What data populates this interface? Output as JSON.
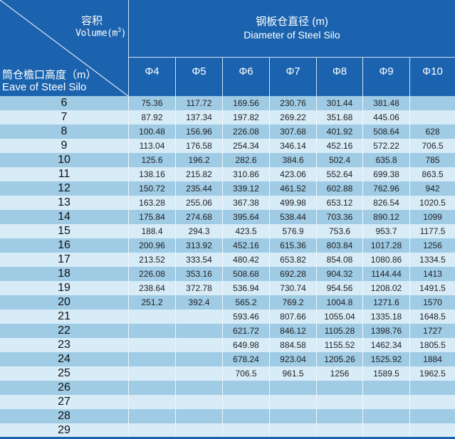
{
  "header": {
    "volume_cn": "容积",
    "volume_en": "Volume(m",
    "volume_sup": "3",
    "volume_close": ")",
    "eave_cn": "筒仓檐口高度（m）",
    "eave_en": "Eave of Steel Silo",
    "diameter_cn": "钢板仓直径 (m)",
    "diameter_en": "Diameter of Steel Silo"
  },
  "columns": [
    "Φ4",
    "Φ5",
    "Φ6",
    "Φ7",
    "Φ8",
    "Φ9",
    "Φ10"
  ],
  "rows": [
    {
      "h": "6",
      "v": [
        "75.36",
        "117.72",
        "169.56",
        "230.76",
        "301.44",
        "381.48",
        ""
      ]
    },
    {
      "h": "7",
      "v": [
        "87.92",
        "137.34",
        "197.82",
        "269.22",
        "351.68",
        "445.06",
        ""
      ]
    },
    {
      "h": "8",
      "v": [
        "100.48",
        "156.96",
        "226.08",
        "307.68",
        "401.92",
        "508.64",
        "628"
      ]
    },
    {
      "h": "9",
      "v": [
        "113.04",
        "176.58",
        "254.34",
        "346.14",
        "452.16",
        "572.22",
        "706.5"
      ]
    },
    {
      "h": "10",
      "v": [
        "125.6",
        "196.2",
        "282.6",
        "384.6",
        "502.4",
        "635.8",
        "785"
      ]
    },
    {
      "h": "11",
      "v": [
        "138.16",
        "215.82",
        "310.86",
        "423.06",
        "552.64",
        "699.38",
        "863.5"
      ]
    },
    {
      "h": "12",
      "v": [
        "150.72",
        "235.44",
        "339.12",
        "461.52",
        "602.88",
        "762.96",
        "942"
      ]
    },
    {
      "h": "13",
      "v": [
        "163.28",
        "255.06",
        "367.38",
        "499.98",
        "653.12",
        "826.54",
        "1020.5"
      ]
    },
    {
      "h": "14",
      "v": [
        "175.84",
        "274.68",
        "395.64",
        "538.44",
        "703.36",
        "890.12",
        "1099"
      ]
    },
    {
      "h": "15",
      "v": [
        "188.4",
        "294.3",
        "423.5",
        "576.9",
        "753.6",
        "953.7",
        "1177.5"
      ]
    },
    {
      "h": "16",
      "v": [
        "200.96",
        "313.92",
        "452.16",
        "615.36",
        "803.84",
        "1017.28",
        "1256"
      ]
    },
    {
      "h": "17",
      "v": [
        "213.52",
        "333.54",
        "480.42",
        "653.82",
        "854.08",
        "1080.86",
        "1334.5"
      ]
    },
    {
      "h": "18",
      "v": [
        "226.08",
        "353.16",
        "508.68",
        "692.28",
        "904.32",
        "1144.44",
        "1413"
      ]
    },
    {
      "h": "19",
      "v": [
        "238.64",
        "372.78",
        "536.94",
        "730.74",
        "954.56",
        "1208.02",
        "1491.5"
      ]
    },
    {
      "h": "20",
      "v": [
        "251.2",
        "392.4",
        "565.2",
        "769.2",
        "1004.8",
        "1271.6",
        "1570"
      ]
    },
    {
      "h": "21",
      "v": [
        "",
        "",
        "593.46",
        "807.66",
        "1055.04",
        "1335.18",
        "1648.5"
      ]
    },
    {
      "h": "22",
      "v": [
        "",
        "",
        "621.72",
        "846.12",
        "1105.28",
        "1398.76",
        "1727"
      ]
    },
    {
      "h": "23",
      "v": [
        "",
        "",
        "649.98",
        "884.58",
        "1155.52",
        "1462.34",
        "1805.5"
      ]
    },
    {
      "h": "24",
      "v": [
        "",
        "",
        "678.24",
        "923.04",
        "1205.26",
        "1525.92",
        "1884"
      ]
    },
    {
      "h": "25",
      "v": [
        "",
        "",
        "706.5",
        "961.5",
        "1256",
        "1589.5",
        "1962.5"
      ]
    },
    {
      "h": "26",
      "v": [
        "",
        "",
        "",
        "",
        "",
        "",
        ""
      ]
    },
    {
      "h": "27",
      "v": [
        "",
        "",
        "",
        "",
        "",
        "",
        ""
      ]
    },
    {
      "h": "28",
      "v": [
        "",
        "",
        "",
        "",
        "",
        "",
        ""
      ]
    },
    {
      "h": "29",
      "v": [
        "",
        "",
        "",
        "",
        "",
        "",
        ""
      ]
    }
  ],
  "colors": {
    "header": "#1b63ae",
    "row_dark": "#9fcbe5",
    "row_light": "#d8ecf8"
  }
}
